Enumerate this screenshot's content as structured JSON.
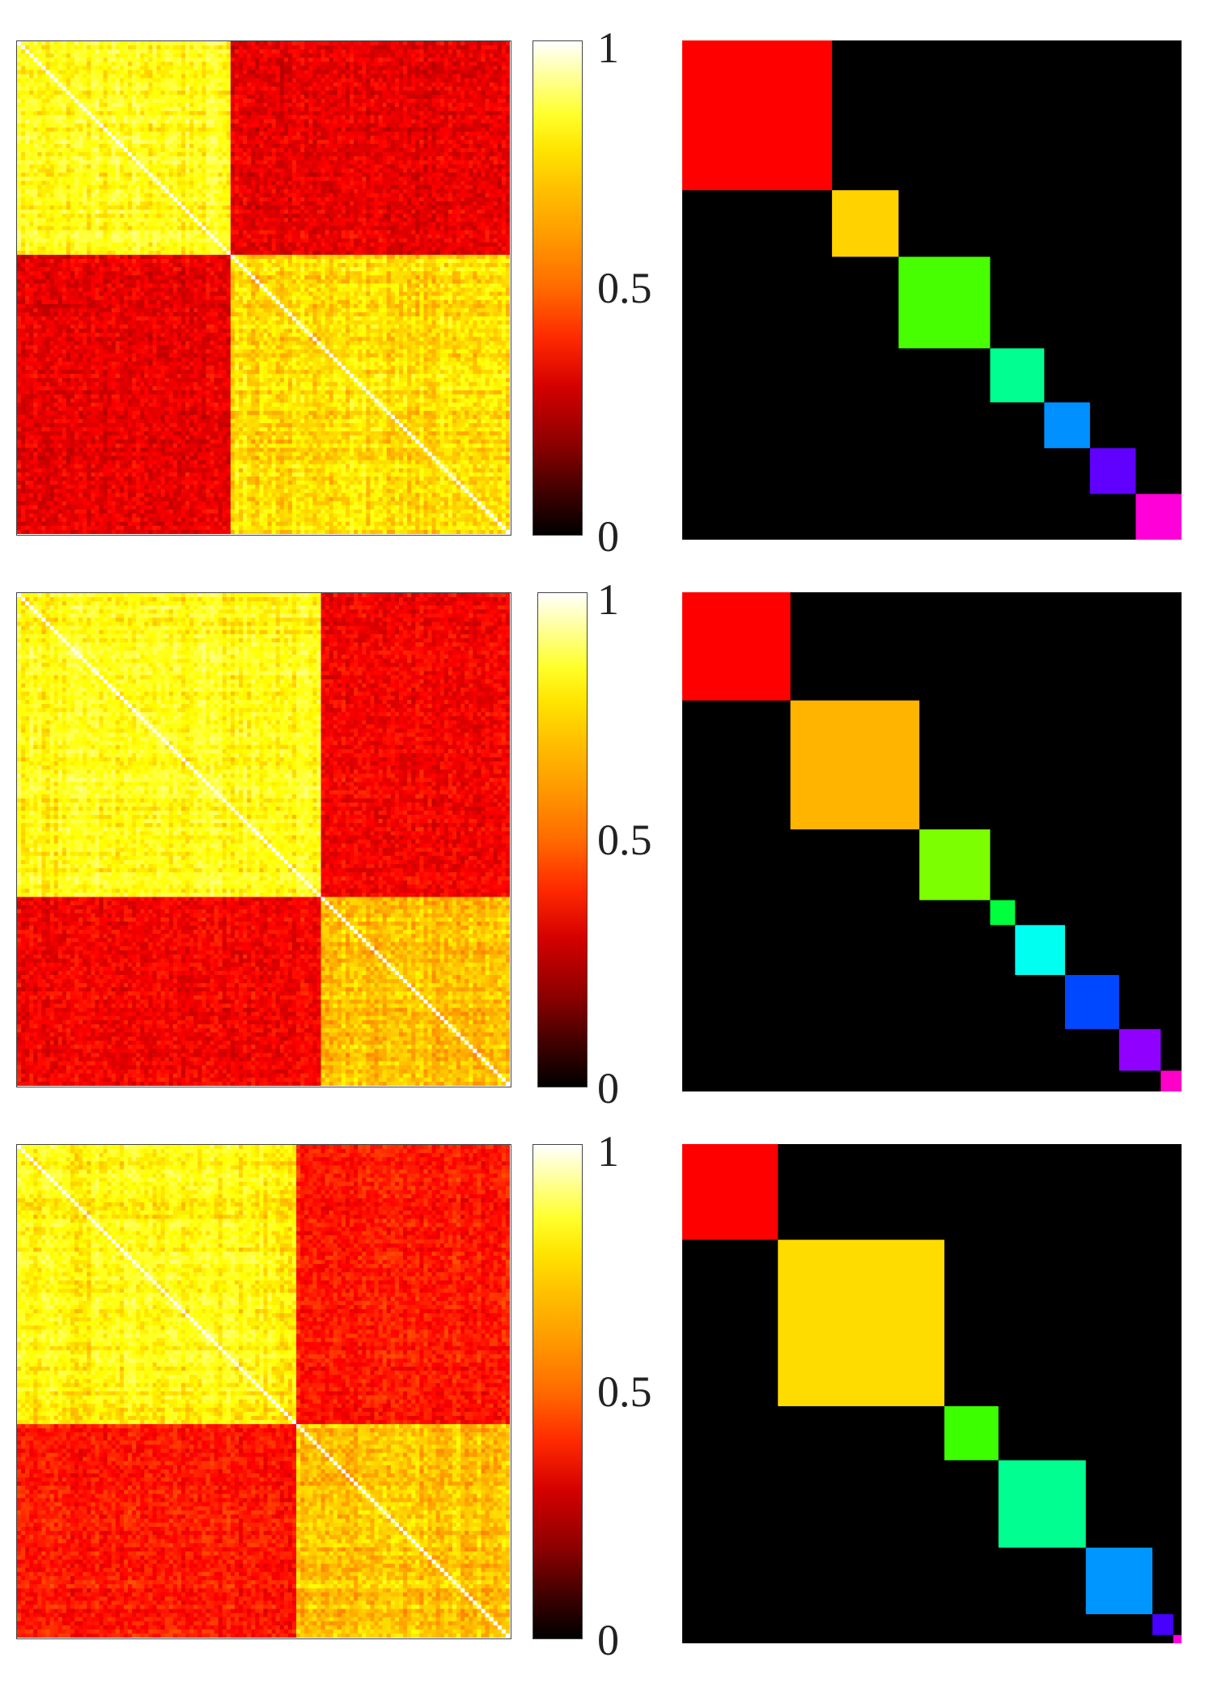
{
  "chart_data": [
    {
      "type": "heatmap",
      "title": "",
      "colormap": "hot",
      "colorbar": {
        "ticks": [
          "1",
          "0.5",
          "0"
        ],
        "range": [
          0,
          1
        ]
      },
      "matrix_size": 120,
      "diagonal_value": 1,
      "cluster_sizes": [
        52,
        68
      ],
      "within_cluster_level": [
        0.85,
        0.78
      ],
      "between_cluster_level": 0.38,
      "assignment_blocks": [
        {
          "color": "#ff0000",
          "size": 36
        },
        {
          "color": "#ffd200",
          "size": 16
        },
        {
          "color": "#47ff00",
          "size": 22
        },
        {
          "color": "#00ff90",
          "size": 13
        },
        {
          "color": "#0090ff",
          "size": 11
        },
        {
          "color": "#6000ff",
          "size": 11
        },
        {
          "color": "#ff00d8",
          "size": 11
        }
      ]
    },
    {
      "type": "heatmap",
      "title": "",
      "colormap": "hot",
      "colorbar": {
        "ticks": [
          "1",
          "0.5",
          "0"
        ],
        "range": [
          0,
          1
        ]
      },
      "matrix_size": 120,
      "diagonal_value": 1,
      "cluster_sizes": [
        74,
        46
      ],
      "within_cluster_level": [
        0.84,
        0.72
      ],
      "between_cluster_level": 0.4,
      "assignment_blocks": [
        {
          "color": "#ff0000",
          "size": 26
        },
        {
          "color": "#ffb400",
          "size": 31
        },
        {
          "color": "#7cff00",
          "size": 17
        },
        {
          "color": "#00ff3c",
          "size": 6
        },
        {
          "color": "#00fff0",
          "size": 12
        },
        {
          "color": "#0048ff",
          "size": 13
        },
        {
          "color": "#9000ff",
          "size": 10
        },
        {
          "color": "#ff00c8",
          "size": 5
        }
      ]
    },
    {
      "type": "heatmap",
      "title": "",
      "colormap": "hot",
      "colorbar": {
        "ticks": [
          "1",
          "0.5",
          "0"
        ],
        "range": [
          0,
          1
        ]
      },
      "matrix_size": 120,
      "diagonal_value": 1,
      "cluster_sizes": [
        68,
        52
      ],
      "within_cluster_level": [
        0.82,
        0.74
      ],
      "between_cluster_level": 0.45,
      "assignment_blocks": [
        {
          "color": "#ff0000",
          "size": 23
        },
        {
          "color": "#ffdc00",
          "size": 40
        },
        {
          "color": "#3cff00",
          "size": 13
        },
        {
          "color": "#00ff90",
          "size": 21
        },
        {
          "color": "#0096ff",
          "size": 16
        },
        {
          "color": "#4800ff",
          "size": 5
        },
        {
          "color": "#ff00e0",
          "size": 2
        }
      ]
    }
  ]
}
